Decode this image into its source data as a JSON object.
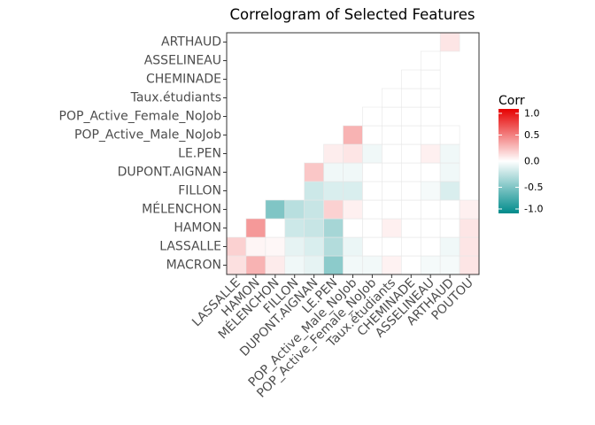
{
  "chart_data": {
    "type": "heatmap",
    "title": "Correlogram of Selected Features",
    "x_labels": [
      "LASSALLE",
      "HAMON",
      "MÉLENCHON",
      "FILLON",
      "DUPONT.AIGNAN",
      "LE.PEN",
      "POP_Active_Male_NoJob",
      "POP_Active_Female_NoJob",
      "Taux.étudiants",
      "CHEMINADE",
      "ASSELINEAU",
      "ARTHAUD",
      "POUTOU"
    ],
    "y_labels": [
      "MACRON",
      "LASSALLE",
      "HAMON",
      "MÉLENCHON",
      "FILLON",
      "DUPONT.AIGNAN",
      "LE.PEN",
      "POP_Active_Male_NoJob",
      "POP_Active_Female_NoJob",
      "Taux.étudiants",
      "CHEMINADE",
      "ASSELINEAU",
      "ARTHAUD"
    ],
    "values": [
      [
        0.12,
        0.3,
        0.08,
        -0.06,
        -0.1,
        -0.45,
        -0.05,
        -0.05,
        0.05,
        0.0,
        -0.04,
        -0.04,
        0.1
      ],
      [
        0.18,
        0.04,
        0.03,
        -0.1,
        -0.15,
        -0.3,
        -0.08,
        0.0,
        0.0,
        0.0,
        0.0,
        -0.06,
        0.1
      ],
      [
        null,
        0.4,
        0.0,
        -0.2,
        -0.22,
        -0.35,
        0.0,
        0.0,
        0.06,
        0.0,
        0.0,
        0.0,
        0.1
      ],
      [
        null,
        null,
        -0.5,
        -0.28,
        -0.22,
        0.18,
        0.06,
        0.0,
        0.0,
        0.0,
        0.0,
        0.0,
        0.06
      ],
      [
        null,
        null,
        null,
        null,
        -0.2,
        -0.15,
        -0.15,
        0.0,
        0.0,
        0.0,
        -0.04,
        -0.15,
        null
      ],
      [
        null,
        null,
        null,
        null,
        0.22,
        -0.06,
        -0.06,
        0.0,
        0.0,
        0.0,
        0.0,
        -0.06,
        null
      ],
      [
        null,
        null,
        null,
        null,
        null,
        0.07,
        0.1,
        -0.06,
        0.0,
        0.0,
        0.06,
        -0.06,
        null
      ],
      [
        null,
        null,
        null,
        null,
        null,
        null,
        0.3,
        0.0,
        0.0,
        0.0,
        0.0,
        0.0,
        null
      ],
      [
        null,
        null,
        null,
        null,
        null,
        null,
        null,
        0.0,
        0.0,
        0.0,
        0.0,
        null,
        null
      ],
      [
        null,
        null,
        null,
        null,
        null,
        null,
        null,
        null,
        0.0,
        0.0,
        0.0,
        null,
        null
      ],
      [
        null,
        null,
        null,
        null,
        null,
        null,
        null,
        null,
        null,
        0.0,
        0.0,
        null,
        null
      ],
      [
        null,
        null,
        null,
        null,
        null,
        null,
        null,
        null,
        null,
        null,
        0.0,
        null,
        null
      ],
      [
        null,
        null,
        null,
        null,
        null,
        null,
        null,
        null,
        null,
        null,
        null,
        0.1,
        null
      ]
    ],
    "color_scale": {
      "low": "#008b8b",
      "mid": "#ffffff",
      "high": "#e60000",
      "range": [
        -1,
        1
      ]
    },
    "legend": {
      "title": "Corr",
      "ticks": [
        1.0,
        0.5,
        0.0,
        -0.5,
        -1.0
      ],
      "tick_labels": [
        "1.0",
        "0.5",
        "0.0",
        "-0.5",
        "-1.0"
      ],
      "position": "right"
    },
    "grid": false,
    "panel_border": true
  }
}
